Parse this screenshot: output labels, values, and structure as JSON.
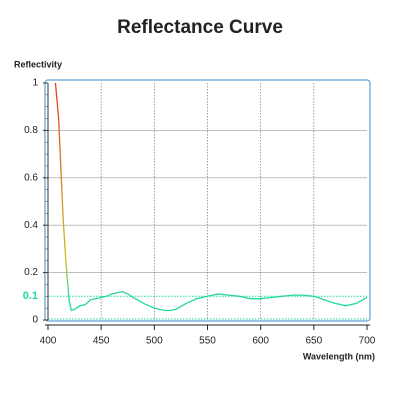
{
  "chart_data": {
    "type": "line",
    "title": "Reflectance Curve",
    "y_label": "Reflectivity",
    "x_label": "Wavelength (nm)",
    "x": [
      407,
      410,
      412,
      414,
      416,
      418,
      420,
      422,
      425,
      430,
      435,
      440,
      445,
      450,
      455,
      460,
      465,
      470,
      475,
      480,
      490,
      500,
      510,
      515,
      520,
      530,
      540,
      550,
      560,
      570,
      580,
      590,
      600,
      610,
      620,
      630,
      640,
      650,
      660,
      670,
      680,
      690,
      700
    ],
    "series": [
      {
        "values": [
          1.0,
          0.85,
          0.65,
          0.45,
          0.3,
          0.18,
          0.08,
          0.04,
          0.045,
          0.06,
          0.065,
          0.085,
          0.09,
          0.095,
          0.1,
          0.11,
          0.115,
          0.12,
          0.11,
          0.095,
          0.07,
          0.05,
          0.04,
          0.04,
          0.045,
          0.07,
          0.09,
          0.1,
          0.11,
          0.105,
          0.1,
          0.09,
          0.09,
          0.095,
          0.1,
          0.105,
          0.105,
          0.1,
          0.085,
          0.07,
          0.06,
          0.07,
          0.095
        ],
        "color": "#22d8a0",
        "gradient": [
          "#e03a1e",
          "#c9c223",
          "#22d8a0"
        ]
      }
    ],
    "xlim": [
      400,
      700
    ],
    "xticks": [
      400,
      450,
      500,
      550,
      600,
      650,
      700
    ],
    "ylim": [
      0,
      1
    ],
    "yticks": [
      0,
      0.2,
      0.4,
      0.6,
      0.8,
      1
    ],
    "reference": 0.1,
    "reference_color": "#22d8a0",
    "grid": true
  }
}
